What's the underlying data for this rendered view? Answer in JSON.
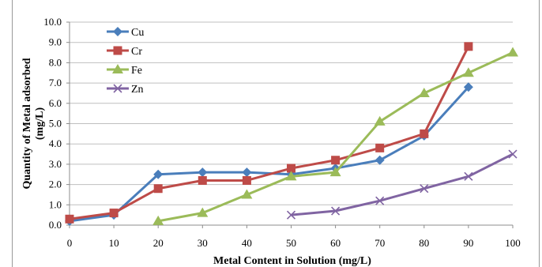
{
  "chart_data": {
    "type": "line",
    "title": "",
    "xlabel": "Metal Content in Solution (mg/L)",
    "ylabel_lines": [
      "Quantity  of Metal adsorbed",
      "(mg/L)"
    ],
    "x_ticks": [
      "0",
      "10",
      "20",
      "30",
      "40",
      "50",
      "60",
      "70",
      "80",
      "90",
      "100"
    ],
    "y_ticks": [
      "0.0",
      "1.0",
      "2.0",
      "3.0",
      "4.0",
      "5.0",
      "6.0",
      "7.0",
      "8.0",
      "9.0",
      "10.0"
    ],
    "xlim": [
      0,
      100
    ],
    "ylim": [
      0,
      10
    ],
    "grid": "horizontal",
    "legend_position": "top-left",
    "series": [
      {
        "name": "Cu",
        "color": "#4a7ebb",
        "marker": "diamond",
        "x": [
          0,
          10,
          20,
          30,
          40,
          50,
          60,
          70,
          80,
          90
        ],
        "y": [
          0.2,
          0.5,
          2.5,
          2.6,
          2.6,
          2.5,
          2.8,
          3.2,
          4.4,
          6.8
        ]
      },
      {
        "name": "Cr",
        "color": "#be4b48",
        "marker": "square",
        "x": [
          0,
          10,
          20,
          30,
          40,
          50,
          60,
          70,
          80,
          90
        ],
        "y": [
          0.3,
          0.6,
          1.8,
          2.2,
          2.2,
          2.8,
          3.2,
          3.8,
          4.5,
          8.8
        ]
      },
      {
        "name": "Fe",
        "color": "#9bbb59",
        "marker": "triangle",
        "x": [
          20,
          30,
          40,
          50,
          60,
          70,
          80,
          90,
          100
        ],
        "y": [
          0.2,
          0.6,
          1.5,
          2.4,
          2.6,
          5.1,
          6.5,
          7.5,
          8.5
        ]
      },
      {
        "name": "Zn",
        "color": "#8064a2",
        "marker": "x",
        "x": [
          50,
          60,
          70,
          80,
          90,
          100
        ],
        "y": [
          0.5,
          0.7,
          1.2,
          1.8,
          2.4,
          3.5
        ]
      }
    ]
  }
}
